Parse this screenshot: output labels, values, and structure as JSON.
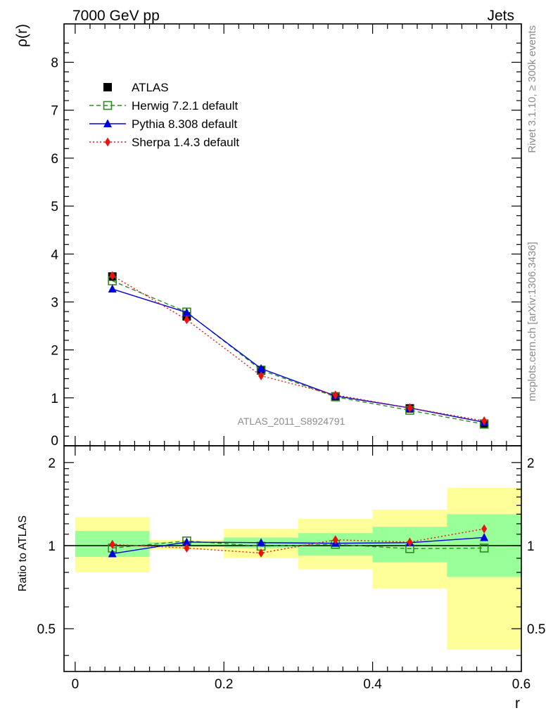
{
  "header": {
    "left": "7000 GeV pp",
    "right": "Jets"
  },
  "side_labels": {
    "rivet": "Rivet 3.1.10, ≥ 300k events",
    "mcplots": "mcplots.cern.ch [arXiv:1306.3436]"
  },
  "watermark": "ATLAS_2011_S8924791",
  "colors": {
    "atlas": "#000000",
    "herwig": "#2f8a1f",
    "pythia": "#0000dd",
    "sherpa": "#ee1111",
    "band_inner": "#99ff99",
    "band_outer": "#ffff99"
  },
  "chart_data": [
    {
      "type": "line",
      "panel": "main",
      "ylabel": "ρ(r)",
      "xlim": [
        -0.015,
        0.6
      ],
      "ylim": [
        0,
        8.8
      ],
      "yticks": [
        0,
        1,
        2,
        3,
        4,
        5,
        6,
        7,
        8
      ],
      "legend_position": "top-left",
      "x": [
        0.05,
        0.15,
        0.25,
        0.35,
        0.45,
        0.55
      ],
      "series": [
        {
          "name": "ATLAS",
          "key": "atlas",
          "marker": "filled-square",
          "line": "none",
          "values": [
            3.53,
            2.7,
            1.57,
            1.03,
            0.78,
            0.46
          ]
        },
        {
          "name": "Herwig 7.2.1 default",
          "key": "herwig",
          "marker": "open-square",
          "line": "dashed",
          "values": [
            3.44,
            2.79,
            1.58,
            1.02,
            0.74,
            0.45
          ]
        },
        {
          "name": "Pythia 8.308 default",
          "key": "pythia",
          "marker": "triangle",
          "line": "solid",
          "values": [
            3.27,
            2.78,
            1.61,
            1.04,
            0.79,
            0.49
          ]
        },
        {
          "name": "Sherpa 1.4.3 default",
          "key": "sherpa",
          "marker": "diamond",
          "line": "dotted",
          "values": [
            3.55,
            2.63,
            1.46,
            1.06,
            0.79,
            0.52
          ]
        }
      ]
    },
    {
      "type": "line",
      "panel": "ratio",
      "ylabel": "Ratio to ATLAS",
      "xlabel": "r",
      "xlim": [
        -0.015,
        0.6
      ],
      "ylim": [
        0.35,
        2.3
      ],
      "yscale": "log",
      "yticks": [
        0.5,
        1,
        2
      ],
      "xticks": [
        0,
        0.2,
        0.4,
        0.6
      ],
      "x": [
        0.05,
        0.15,
        0.25,
        0.35,
        0.45,
        0.55
      ],
      "bin_edges": [
        0,
        0.1,
        0.2,
        0.3,
        0.4,
        0.5,
        0.6
      ],
      "bands": {
        "inner_low": [
          0.91,
          0.99,
          0.98,
          0.92,
          0.87,
          0.77
        ],
        "inner_high": [
          1.13,
          1.03,
          1.07,
          1.11,
          1.17,
          1.3
        ],
        "outer_low": [
          0.8,
          0.97,
          0.9,
          0.82,
          0.7,
          0.42
        ],
        "outer_high": [
          1.27,
          1.05,
          1.15,
          1.25,
          1.35,
          1.62
        ]
      },
      "series": [
        {
          "name": "Herwig 7.2.1 default",
          "key": "herwig",
          "marker": "open-square",
          "line": "dashed",
          "values": [
            0.98,
            1.04,
            0.995,
            1.01,
            0.975,
            0.98
          ]
        },
        {
          "name": "Pythia 8.308 default",
          "key": "pythia",
          "marker": "triangle",
          "line": "solid",
          "values": [
            0.935,
            1.03,
            1.025,
            1.02,
            1.025,
            1.07
          ]
        },
        {
          "name": "Sherpa 1.4.3 default",
          "key": "sherpa",
          "marker": "diamond",
          "line": "dotted",
          "values": [
            1.01,
            0.98,
            0.94,
            1.05,
            1.03,
            1.15
          ]
        }
      ]
    }
  ]
}
